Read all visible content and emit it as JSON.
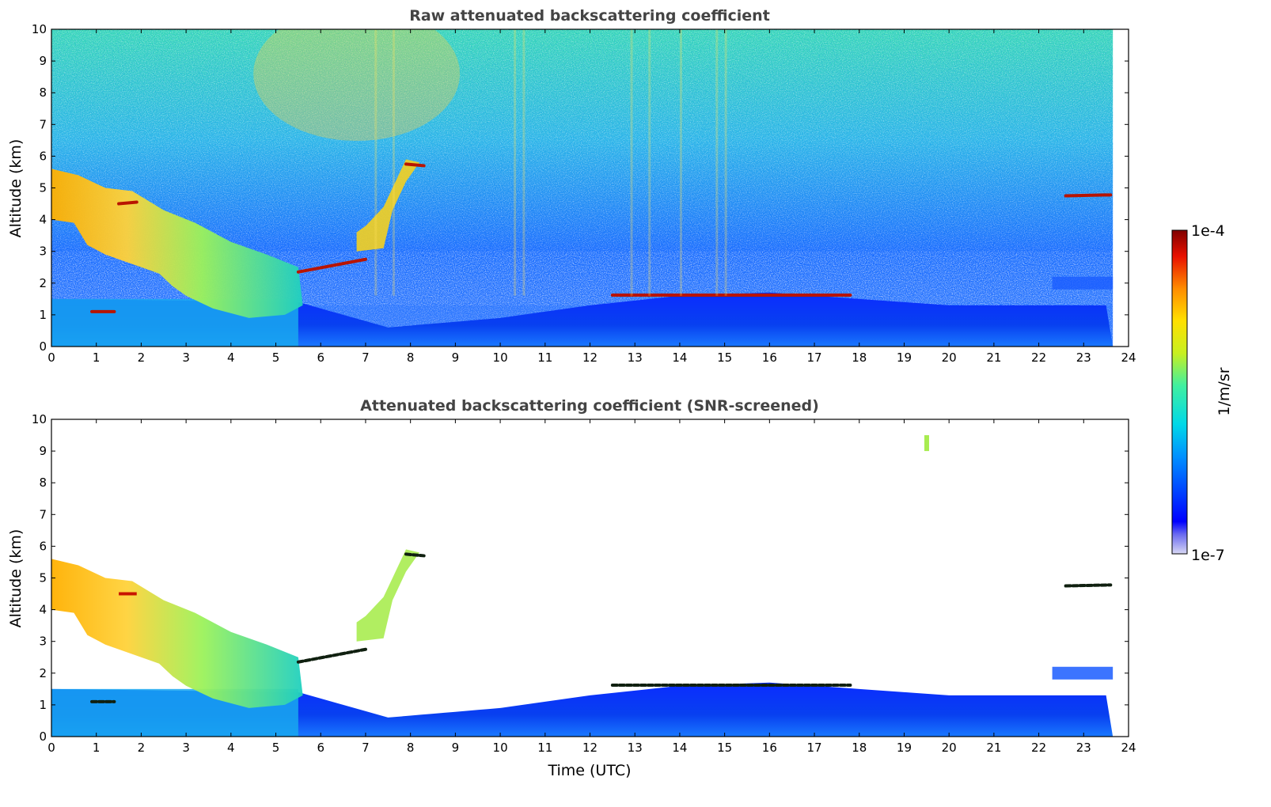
{
  "chart_data": [
    {
      "type": "heatmap",
      "title": "Raw attenuated backscattering coefficient",
      "xlabel": "",
      "ylabel": "Altitude (km)",
      "xlim": [
        0,
        24
      ],
      "ylim": [
        0,
        10
      ],
      "xticks": [
        "0",
        "1",
        "2",
        "3",
        "4",
        "5",
        "6",
        "7",
        "8",
        "9",
        "10",
        "11",
        "12",
        "13",
        "14",
        "15",
        "16",
        "17",
        "18",
        "19",
        "20",
        "21",
        "22",
        "23",
        "24"
      ],
      "yticks": [
        "0",
        "1",
        "2",
        "3",
        "4",
        "5",
        "6",
        "7",
        "8",
        "9",
        "10"
      ],
      "data_extent_x": [
        0,
        23.65
      ],
      "features": [
        {
          "kind": "boundary_layer",
          "time": [
            0,
            23.65
          ],
          "top_km_at": [
            [
              0,
              1.5
            ],
            [
              5.5,
              1.4
            ],
            [
              7.5,
              0.6
            ],
            [
              10,
              0.9
            ],
            [
              12,
              1.3
            ],
            [
              14,
              1.6
            ],
            [
              16,
              1.7
            ],
            [
              18,
              1.5
            ],
            [
              20,
              1.3
            ],
            [
              23.6,
              1.3
            ]
          ],
          "level": "low"
        },
        {
          "kind": "descending_cloud",
          "time": [
            0,
            5.6
          ],
          "alt_top_km": [
            5.5,
            2.5
          ],
          "alt_bottom_km": [
            4.0,
            1.0
          ],
          "level": "high"
        },
        {
          "kind": "thin_cloud",
          "time": [
            5.5,
            7.0
          ],
          "alt_km": [
            2.3,
            2.8
          ],
          "level": "very_high"
        },
        {
          "kind": "rising_cloud",
          "time": [
            6.8,
            8.2
          ],
          "alt_km": [
            3.0,
            5.8
          ],
          "level": "high"
        },
        {
          "kind": "cloud_top_bl",
          "time": [
            12.5,
            17.8
          ],
          "alt_km": 1.65,
          "level": "very_high"
        },
        {
          "kind": "thin_cloud",
          "time": [
            22.5,
            23.6
          ],
          "alt_km": 4.75,
          "level": "very_high"
        },
        {
          "kind": "upper_layer",
          "time": [
            22.3,
            23.6
          ],
          "alt_km": [
            1.8,
            2.2
          ],
          "level": "low"
        }
      ]
    },
    {
      "type": "heatmap",
      "title": "Attenuated backscattering coefficient (SNR-screened)",
      "xlabel": "Time (UTC)",
      "ylabel": "Altitude (km)",
      "xlim": [
        0,
        24
      ],
      "ylim": [
        0,
        10
      ],
      "xticks": [
        "0",
        "1",
        "2",
        "3",
        "4",
        "5",
        "6",
        "7",
        "8",
        "9",
        "10",
        "11",
        "12",
        "13",
        "14",
        "15",
        "16",
        "17",
        "18",
        "19",
        "20",
        "21",
        "22",
        "23",
        "24"
      ],
      "yticks": [
        "0",
        "1",
        "2",
        "3",
        "4",
        "5",
        "6",
        "7",
        "8",
        "9",
        "10"
      ],
      "data_extent_x": [
        0,
        23.65
      ]
    }
  ],
  "colorbar": {
    "label": "1/m/sr",
    "max_label": "1e-4",
    "min_label": "1e-7",
    "colormap": "jet",
    "scale": "log"
  }
}
